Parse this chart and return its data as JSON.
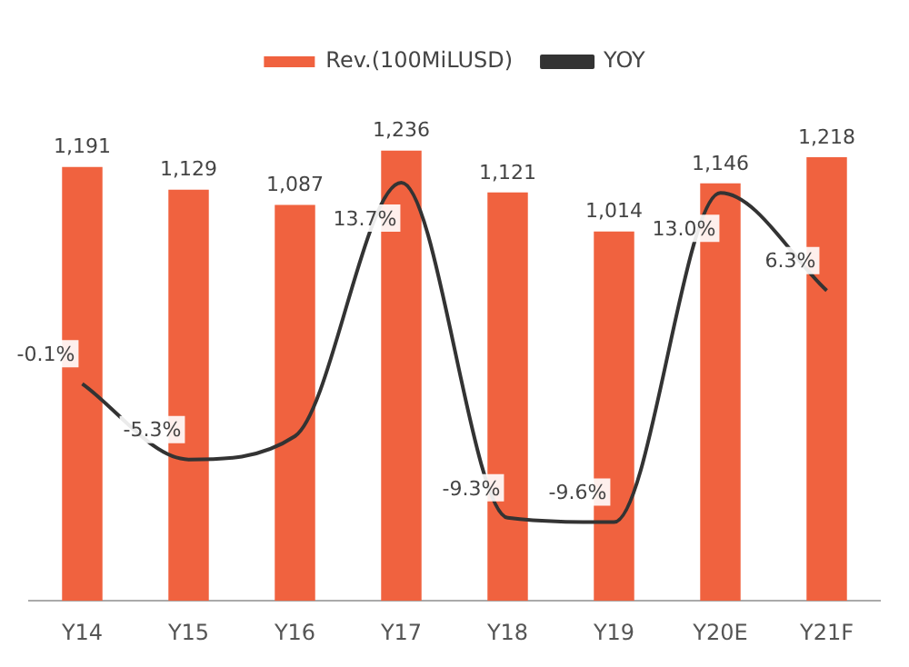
{
  "chart_data": {
    "type": "bar",
    "categories": [
      "Y14",
      "Y15",
      "Y16",
      "Y17",
      "Y18",
      "Y19",
      "Y20E",
      "Y21F"
    ],
    "legend": "top",
    "series": [
      {
        "name": "Rev.(100MiLUSD)",
        "color": "#f0623f",
        "values": [
          1191,
          1129,
          1087,
          1236,
          1121,
          1014,
          1146,
          1218
        ],
        "value_labels": [
          "1,191",
          "1,129",
          "1,087",
          "1,236",
          "1,121",
          "1,014",
          "1,146",
          "1,218"
        ]
      },
      {
        "name": "YOY",
        "type": "line",
        "axis": "y2",
        "color": "#333333",
        "values": [
          -0.1,
          -5.3,
          -3.7,
          13.7,
          -9.3,
          -9.6,
          13.0,
          6.3
        ],
        "value_labels": [
          "-0.1%",
          "-5.3%",
          null,
          "13.7%",
          "-9.3%",
          "-9.6%",
          "13.0%",
          "6.3%"
        ]
      }
    ]
  }
}
